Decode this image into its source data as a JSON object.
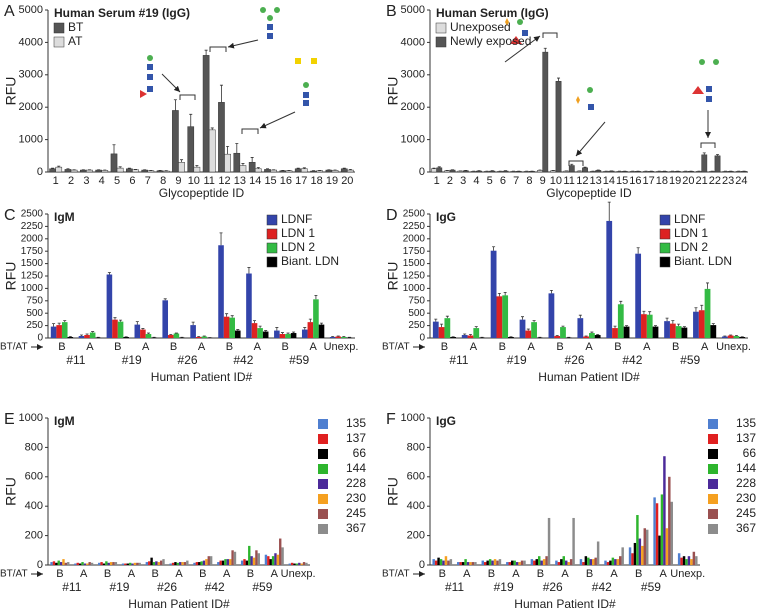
{
  "chart_data": [
    {
      "type": "bar",
      "panel": "A",
      "title": "Human Serum #19 (IgG)",
      "x_label": "Glycopeptide ID",
      "y_label": "RFU",
      "categories": [
        "1",
        "2",
        "3",
        "4",
        "5",
        "6",
        "7",
        "8",
        "9",
        "10",
        "11",
        "12",
        "13",
        "14",
        "15",
        "16",
        "17",
        "18",
        "19",
        "20"
      ],
      "series": [
        {
          "name": "BT",
          "color": "#555555",
          "values": [
            100,
            80,
            60,
            60,
            560,
            100,
            60,
            40,
            1900,
            1400,
            3600,
            2150,
            580,
            300,
            80,
            40,
            100,
            30,
            60,
            100
          ],
          "errors": [
            20,
            20,
            10,
            10,
            280,
            20,
            10,
            10,
            330,
            380,
            160,
            530,
            300,
            150,
            20,
            10,
            20,
            10,
            10,
            20
          ]
        },
        {
          "name": "AT",
          "color": "#dddddd",
          "values": [
            150,
            60,
            60,
            50,
            120,
            70,
            40,
            30,
            300,
            150,
            1300,
            550,
            200,
            100,
            60,
            40,
            100,
            40,
            50,
            60
          ],
          "errors": [
            30,
            10,
            10,
            10,
            40,
            10,
            10,
            10,
            80,
            50,
            60,
            240,
            60,
            40,
            10,
            10,
            30,
            10,
            10,
            20
          ]
        }
      ],
      "ylim": [
        0,
        5000
      ],
      "yticks": [
        0,
        1000,
        2000,
        3000,
        4000,
        5000
      ],
      "legend": "upper left"
    },
    {
      "type": "bar",
      "panel": "B",
      "title": "Human Serum (IgG)",
      "x_label": "Glycopeptide ID",
      "y_label": "RFU",
      "categories": [
        "1",
        "2",
        "3",
        "4",
        "5",
        "6",
        "7",
        "8",
        "9",
        "10",
        "11",
        "12",
        "13",
        "14",
        "15",
        "16",
        "17",
        "18",
        "19",
        "20",
        "21",
        "22",
        "23",
        "24"
      ],
      "series": [
        {
          "name": "Unexposed",
          "color": "#dddddd",
          "values": [
            100,
            40,
            30,
            20,
            20,
            20,
            20,
            20,
            50,
            40,
            30,
            30,
            20,
            20,
            20,
            20,
            20,
            20,
            20,
            20,
            20,
            20,
            20,
            20
          ],
          "errors": [
            20,
            10,
            5,
            5,
            5,
            5,
            5,
            5,
            10,
            10,
            5,
            5,
            5,
            5,
            5,
            5,
            5,
            5,
            5,
            5,
            5,
            5,
            5,
            5
          ]
        },
        {
          "name": "Newly exposed",
          "color": "#555555",
          "values": [
            130,
            60,
            40,
            30,
            30,
            30,
            20,
            20,
            3700,
            2800,
            200,
            130,
            50,
            30,
            20,
            20,
            20,
            20,
            20,
            20,
            530,
            500,
            20,
            20
          ],
          "errors": [
            30,
            10,
            10,
            10,
            10,
            10,
            5,
            5,
            120,
            100,
            40,
            20,
            10,
            5,
            5,
            5,
            5,
            5,
            5,
            5,
            60,
            40,
            5,
            5
          ]
        }
      ],
      "ylim": [
        0,
        5000
      ],
      "yticks": [
        0,
        1000,
        2000,
        3000,
        4000,
        5000
      ],
      "legend": "upper left"
    },
    {
      "type": "bar",
      "panel": "C",
      "title": "IgM",
      "x_label": "Human Patient ID#",
      "y_label": "RFU",
      "group_axis_label": "BT/AT",
      "categories": [
        "B",
        "A",
        "B",
        "A",
        "B",
        "A",
        "B",
        "A",
        "B",
        "A",
        "Unexp."
      ],
      "groups": [
        "#11",
        "#19",
        "#26",
        "#42",
        "#59"
      ],
      "series": [
        {
          "name": "LDNF",
          "color": "#3344aa",
          "values": [
            230,
            40,
            1280,
            270,
            760,
            260,
            1870,
            1300,
            150,
            170,
            20
          ],
          "errors": [
            60,
            20,
            40,
            60,
            30,
            60,
            250,
            120,
            60,
            40,
            10
          ]
        },
        {
          "name": "LDN 1",
          "color": "#dd2222",
          "values": [
            260,
            60,
            370,
            170,
            60,
            20,
            430,
            300,
            80,
            320,
            30
          ],
          "errors": [
            40,
            20,
            40,
            20,
            10,
            10,
            60,
            50,
            30,
            60,
            10
          ]
        },
        {
          "name": "LDN 2",
          "color": "#33bb44",
          "values": [
            320,
            110,
            330,
            80,
            90,
            30,
            410,
            200,
            80,
            780,
            20
          ],
          "errors": [
            30,
            20,
            30,
            20,
            10,
            10,
            40,
            40,
            20,
            80,
            10
          ]
        },
        {
          "name": "Biant. LDN",
          "color": "#000000",
          "values": [
            20,
            10,
            20,
            10,
            10,
            5,
            150,
            130,
            100,
            270,
            10
          ],
          "errors": [
            10,
            5,
            5,
            5,
            5,
            5,
            20,
            20,
            20,
            30,
            5
          ]
        }
      ],
      "ylim": [
        0,
        2500
      ],
      "yticks": [
        0,
        250,
        500,
        750,
        1000,
        1250,
        1500,
        1750,
        2000,
        2250,
        2500
      ],
      "legend": "upper right"
    },
    {
      "type": "bar",
      "panel": "D",
      "title": "IgG",
      "x_label": "Human Patient ID#",
      "y_label": "RFU",
      "group_axis_label": "BT/AT",
      "categories": [
        "B",
        "A",
        "B",
        "A",
        "B",
        "A",
        "B",
        "A",
        "B",
        "A",
        "Unexp."
      ],
      "groups": [
        "#11",
        "#19",
        "#26",
        "#42",
        "#59"
      ],
      "series": [
        {
          "name": "LDNF",
          "color": "#3344aa",
          "values": [
            330,
            60,
            1760,
            370,
            900,
            400,
            2360,
            1700,
            340,
            530,
            30
          ],
          "errors": [
            50,
            20,
            80,
            60,
            60,
            60,
            380,
            120,
            60,
            80,
            10
          ]
        },
        {
          "name": "LDN 1",
          "color": "#dd2222",
          "values": [
            220,
            50,
            840,
            150,
            40,
            30,
            200,
            480,
            290,
            560,
            50
          ],
          "errors": [
            60,
            20,
            60,
            30,
            10,
            10,
            40,
            60,
            60,
            100,
            10
          ]
        },
        {
          "name": "LDN 2",
          "color": "#33bb44",
          "values": [
            400,
            200,
            860,
            320,
            220,
            100,
            680,
            470,
            240,
            990,
            40
          ],
          "errors": [
            40,
            30,
            60,
            30,
            20,
            20,
            60,
            60,
            40,
            120,
            10
          ]
        },
        {
          "name": "Biant. LDN",
          "color": "#000000",
          "values": [
            20,
            10,
            20,
            10,
            10,
            60,
            230,
            230,
            210,
            260,
            20
          ],
          "errors": [
            5,
            5,
            5,
            5,
            5,
            10,
            20,
            20,
            20,
            30,
            5
          ]
        }
      ],
      "ylim": [
        0,
        2500
      ],
      "yticks": [
        0,
        250,
        500,
        750,
        1000,
        1250,
        1500,
        1750,
        2000,
        2250,
        2500
      ],
      "legend": "upper right"
    },
    {
      "type": "bar",
      "panel": "E",
      "title": "IgM",
      "x_label": "Human Patient ID#",
      "y_label": "RFU",
      "group_axis_label": "BT/AT",
      "categories": [
        "B",
        "A",
        "B",
        "A",
        "B",
        "A",
        "B",
        "A",
        "B",
        "A",
        "Unexp."
      ],
      "groups": [
        "#11",
        "#19",
        "#26",
        "#42",
        "#59"
      ],
      "series": [
        {
          "name": "135",
          "color": "#4f7fd0",
          "values": [
            20,
            10,
            15,
            10,
            20,
            10,
            15,
            20,
            30,
            70,
            10
          ]
        },
        {
          "name": "137",
          "color": "#e02020",
          "values": [
            25,
            15,
            20,
            10,
            25,
            15,
            20,
            30,
            40,
            60,
            15
          ]
        },
        {
          "name": "66",
          "color": "#000000",
          "values": [
            15,
            10,
            10,
            10,
            50,
            20,
            20,
            30,
            30,
            40,
            10
          ]
        },
        {
          "name": "144",
          "color": "#2db52d",
          "values": [
            30,
            20,
            25,
            15,
            20,
            15,
            25,
            40,
            130,
            60,
            10
          ]
        },
        {
          "name": "228",
          "color": "#4b2a9a",
          "values": [
            20,
            10,
            15,
            10,
            25,
            20,
            30,
            40,
            60,
            80,
            15
          ]
        },
        {
          "name": "230",
          "color": "#f5a020",
          "values": [
            40,
            10,
            20,
            15,
            20,
            20,
            40,
            40,
            50,
            70,
            10
          ]
        },
        {
          "name": "245",
          "color": "#9a5050",
          "values": [
            15,
            20,
            20,
            15,
            30,
            20,
            60,
            100,
            100,
            180,
            20
          ]
        },
        {
          "name": "367",
          "color": "#8c8c8c",
          "values": [
            20,
            15,
            20,
            15,
            40,
            30,
            60,
            90,
            80,
            120,
            15
          ]
        }
      ],
      "ylim": [
        0,
        1000
      ],
      "yticks": [
        0,
        200,
        400,
        600,
        800,
        1000
      ],
      "legend": "right"
    },
    {
      "type": "bar",
      "panel": "F",
      "title": "IgG",
      "x_label": "Human Patient ID#",
      "y_label": "RFU",
      "group_axis_label": "BT/AT",
      "categories": [
        "B",
        "A",
        "B",
        "A",
        "B",
        "A",
        "B",
        "A",
        "B",
        "A",
        "Unexp."
      ],
      "groups": [
        "#11",
        "#19",
        "#26",
        "#42",
        "#59"
      ],
      "series": [
        {
          "name": "135",
          "color": "#4f7fd0",
          "values": [
            40,
            20,
            30,
            20,
            40,
            30,
            40,
            30,
            120,
            460,
            80
          ]
        },
        {
          "name": "137",
          "color": "#e02020",
          "values": [
            30,
            20,
            20,
            20,
            30,
            20,
            20,
            20,
            80,
            420,
            50
          ]
        },
        {
          "name": "66",
          "color": "#000000",
          "values": [
            50,
            20,
            30,
            30,
            40,
            40,
            60,
            30,
            150,
            200,
            60
          ]
        },
        {
          "name": "144",
          "color": "#2db52d",
          "values": [
            40,
            40,
            40,
            30,
            60,
            60,
            50,
            50,
            340,
            480,
            40
          ]
        },
        {
          "name": "228",
          "color": "#4b2a9a",
          "values": [
            30,
            20,
            30,
            20,
            30,
            30,
            40,
            40,
            180,
            740,
            60
          ]
        },
        {
          "name": "230",
          "color": "#f5a020",
          "values": [
            60,
            20,
            40,
            20,
            40,
            20,
            40,
            40,
            130,
            250,
            40
          ]
        },
        {
          "name": "245",
          "color": "#9a5050",
          "values": [
            30,
            20,
            30,
            30,
            60,
            40,
            50,
            60,
            250,
            600,
            90
          ]
        },
        {
          "name": "367",
          "color": "#8c8c8c",
          "values": [
            40,
            20,
            40,
            30,
            320,
            320,
            160,
            120,
            240,
            430,
            60
          ]
        }
      ],
      "ylim": [
        0,
        1000
      ],
      "yticks": [
        0,
        200,
        400,
        600,
        800,
        1000
      ],
      "legend": "right"
    }
  ]
}
